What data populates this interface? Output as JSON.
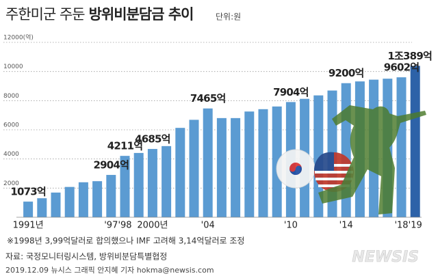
{
  "chart_data": {
    "type": "bar",
    "title_light": "주한미군 주둔",
    "title_bold": "방위비분담금 추이",
    "unit": "단위:원",
    "categories": [
      "1991년",
      null,
      null,
      null,
      null,
      null,
      "'97",
      "'98",
      null,
      "2000년",
      null,
      null,
      null,
      "'04",
      null,
      null,
      null,
      null,
      null,
      "'10",
      null,
      null,
      null,
      "'14",
      null,
      null,
      null,
      "'18",
      "'19"
    ],
    "values": [
      1073,
      1305,
      1694,
      2080,
      2400,
      2475,
      2904,
      4211,
      4411,
      4685,
      4882,
      6132,
      6686,
      7465,
      6804,
      6804,
      7255,
      7415,
      7600,
      7904,
      8125,
      8361,
      8695,
      9200,
      9320,
      9441,
      9507,
      9602,
      10389
    ],
    "value_labels": [
      "1073억",
      null,
      null,
      null,
      null,
      null,
      "2904억",
      "4211억",
      null,
      "4685억",
      null,
      null,
      null,
      "7465억",
      null,
      null,
      null,
      null,
      null,
      "7904억",
      null,
      null,
      null,
      "9200억",
      null,
      null,
      null,
      "9602억",
      "1조389억"
    ],
    "colors": [
      "#5b9bd2",
      "#5b9bd2",
      "#5b9bd2",
      "#5b9bd2",
      "#5b9bd2",
      "#5b9bd2",
      "#5b9bd2",
      "#5b9bd2",
      "#5b9bd2",
      "#5b9bd2",
      "#5b9bd2",
      "#5b9bd2",
      "#5b9bd2",
      "#5b9bd2",
      "#5b9bd2",
      "#5b9bd2",
      "#5b9bd2",
      "#5b9bd2",
      "#5b9bd2",
      "#5b9bd2",
      "#5b9bd2",
      "#5b9bd2",
      "#5b9bd2",
      "#5b9bd2",
      "#5b9bd2",
      "#5b9bd2",
      "#5b9bd2",
      "#5b9bd2",
      "#2d62a8"
    ],
    "ylim": [
      0,
      12000
    ],
    "yticks": [
      2000,
      4000,
      6000,
      8000,
      10000,
      {
        "value": 12000,
        "label": "12000(억)"
      }
    ],
    "grid": true,
    "note": "※1998년 3,99억달러로 합의했으나 IMF 고려해 3,14억달러로 조정",
    "source": "자료: 국정모니터링시스템, 방위비분담특별협정",
    "credit": "2019.12.09 뉴시스 그래픽 안지혜 기자 hokma@newsis.com",
    "watermark": "NEWSIS"
  }
}
